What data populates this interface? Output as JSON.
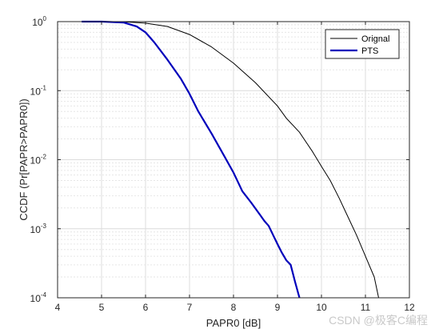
{
  "chart_data": {
    "type": "line",
    "title": "",
    "xlabel": "PAPR0 [dB]",
    "ylabel": "CCDF (Pr[PAPR>PAPR0])",
    "xlim": [
      4,
      12
    ],
    "ylim": [
      0.0001,
      1
    ],
    "yscale": "log",
    "xticks": [
      "4",
      "5",
      "6",
      "7",
      "8",
      "9",
      "10",
      "11",
      "12"
    ],
    "yticks": [
      {
        "base": "10",
        "exp": "0"
      },
      {
        "base": "10",
        "exp": "-1"
      },
      {
        "base": "10",
        "exp": "-2"
      },
      {
        "base": "10",
        "exp": "-3"
      },
      {
        "base": "10",
        "exp": "-4"
      }
    ],
    "grid": true,
    "legend": "top-right",
    "series": [
      {
        "name": "Orignal",
        "color": "#000000",
        "x": [
          4.6,
          5.0,
          5.5,
          6.0,
          6.5,
          7.0,
          7.5,
          8.0,
          8.5,
          9.0,
          9.2,
          9.5,
          9.8,
          10.0,
          10.2,
          10.4,
          10.6,
          10.8,
          11.0,
          11.2,
          11.3
        ],
        "y": [
          1.0,
          1.0,
          0.995,
          0.95,
          0.85,
          0.65,
          0.43,
          0.25,
          0.13,
          0.06,
          0.04,
          0.025,
          0.013,
          0.008,
          0.005,
          0.0028,
          0.0015,
          0.0008,
          0.0004,
          0.0002,
          0.0001
        ]
      },
      {
        "name": "PTS",
        "color": "#0000bb",
        "x": [
          4.55,
          5.0,
          5.5,
          5.8,
          6.0,
          6.2,
          6.5,
          6.8,
          7.0,
          7.2,
          7.5,
          7.8,
          8.0,
          8.2,
          8.4,
          8.6,
          8.7,
          8.8,
          9.0,
          9.1,
          9.2,
          9.3,
          9.4,
          9.5
        ],
        "y": [
          1.0,
          1.0,
          0.97,
          0.85,
          0.7,
          0.5,
          0.28,
          0.15,
          0.09,
          0.05,
          0.024,
          0.011,
          0.0065,
          0.0035,
          0.0024,
          0.0016,
          0.0013,
          0.0011,
          0.0006,
          0.00045,
          0.00035,
          0.0003,
          0.00017,
          0.0001
        ]
      }
    ]
  },
  "watermark": "CSDN @极客C编程"
}
